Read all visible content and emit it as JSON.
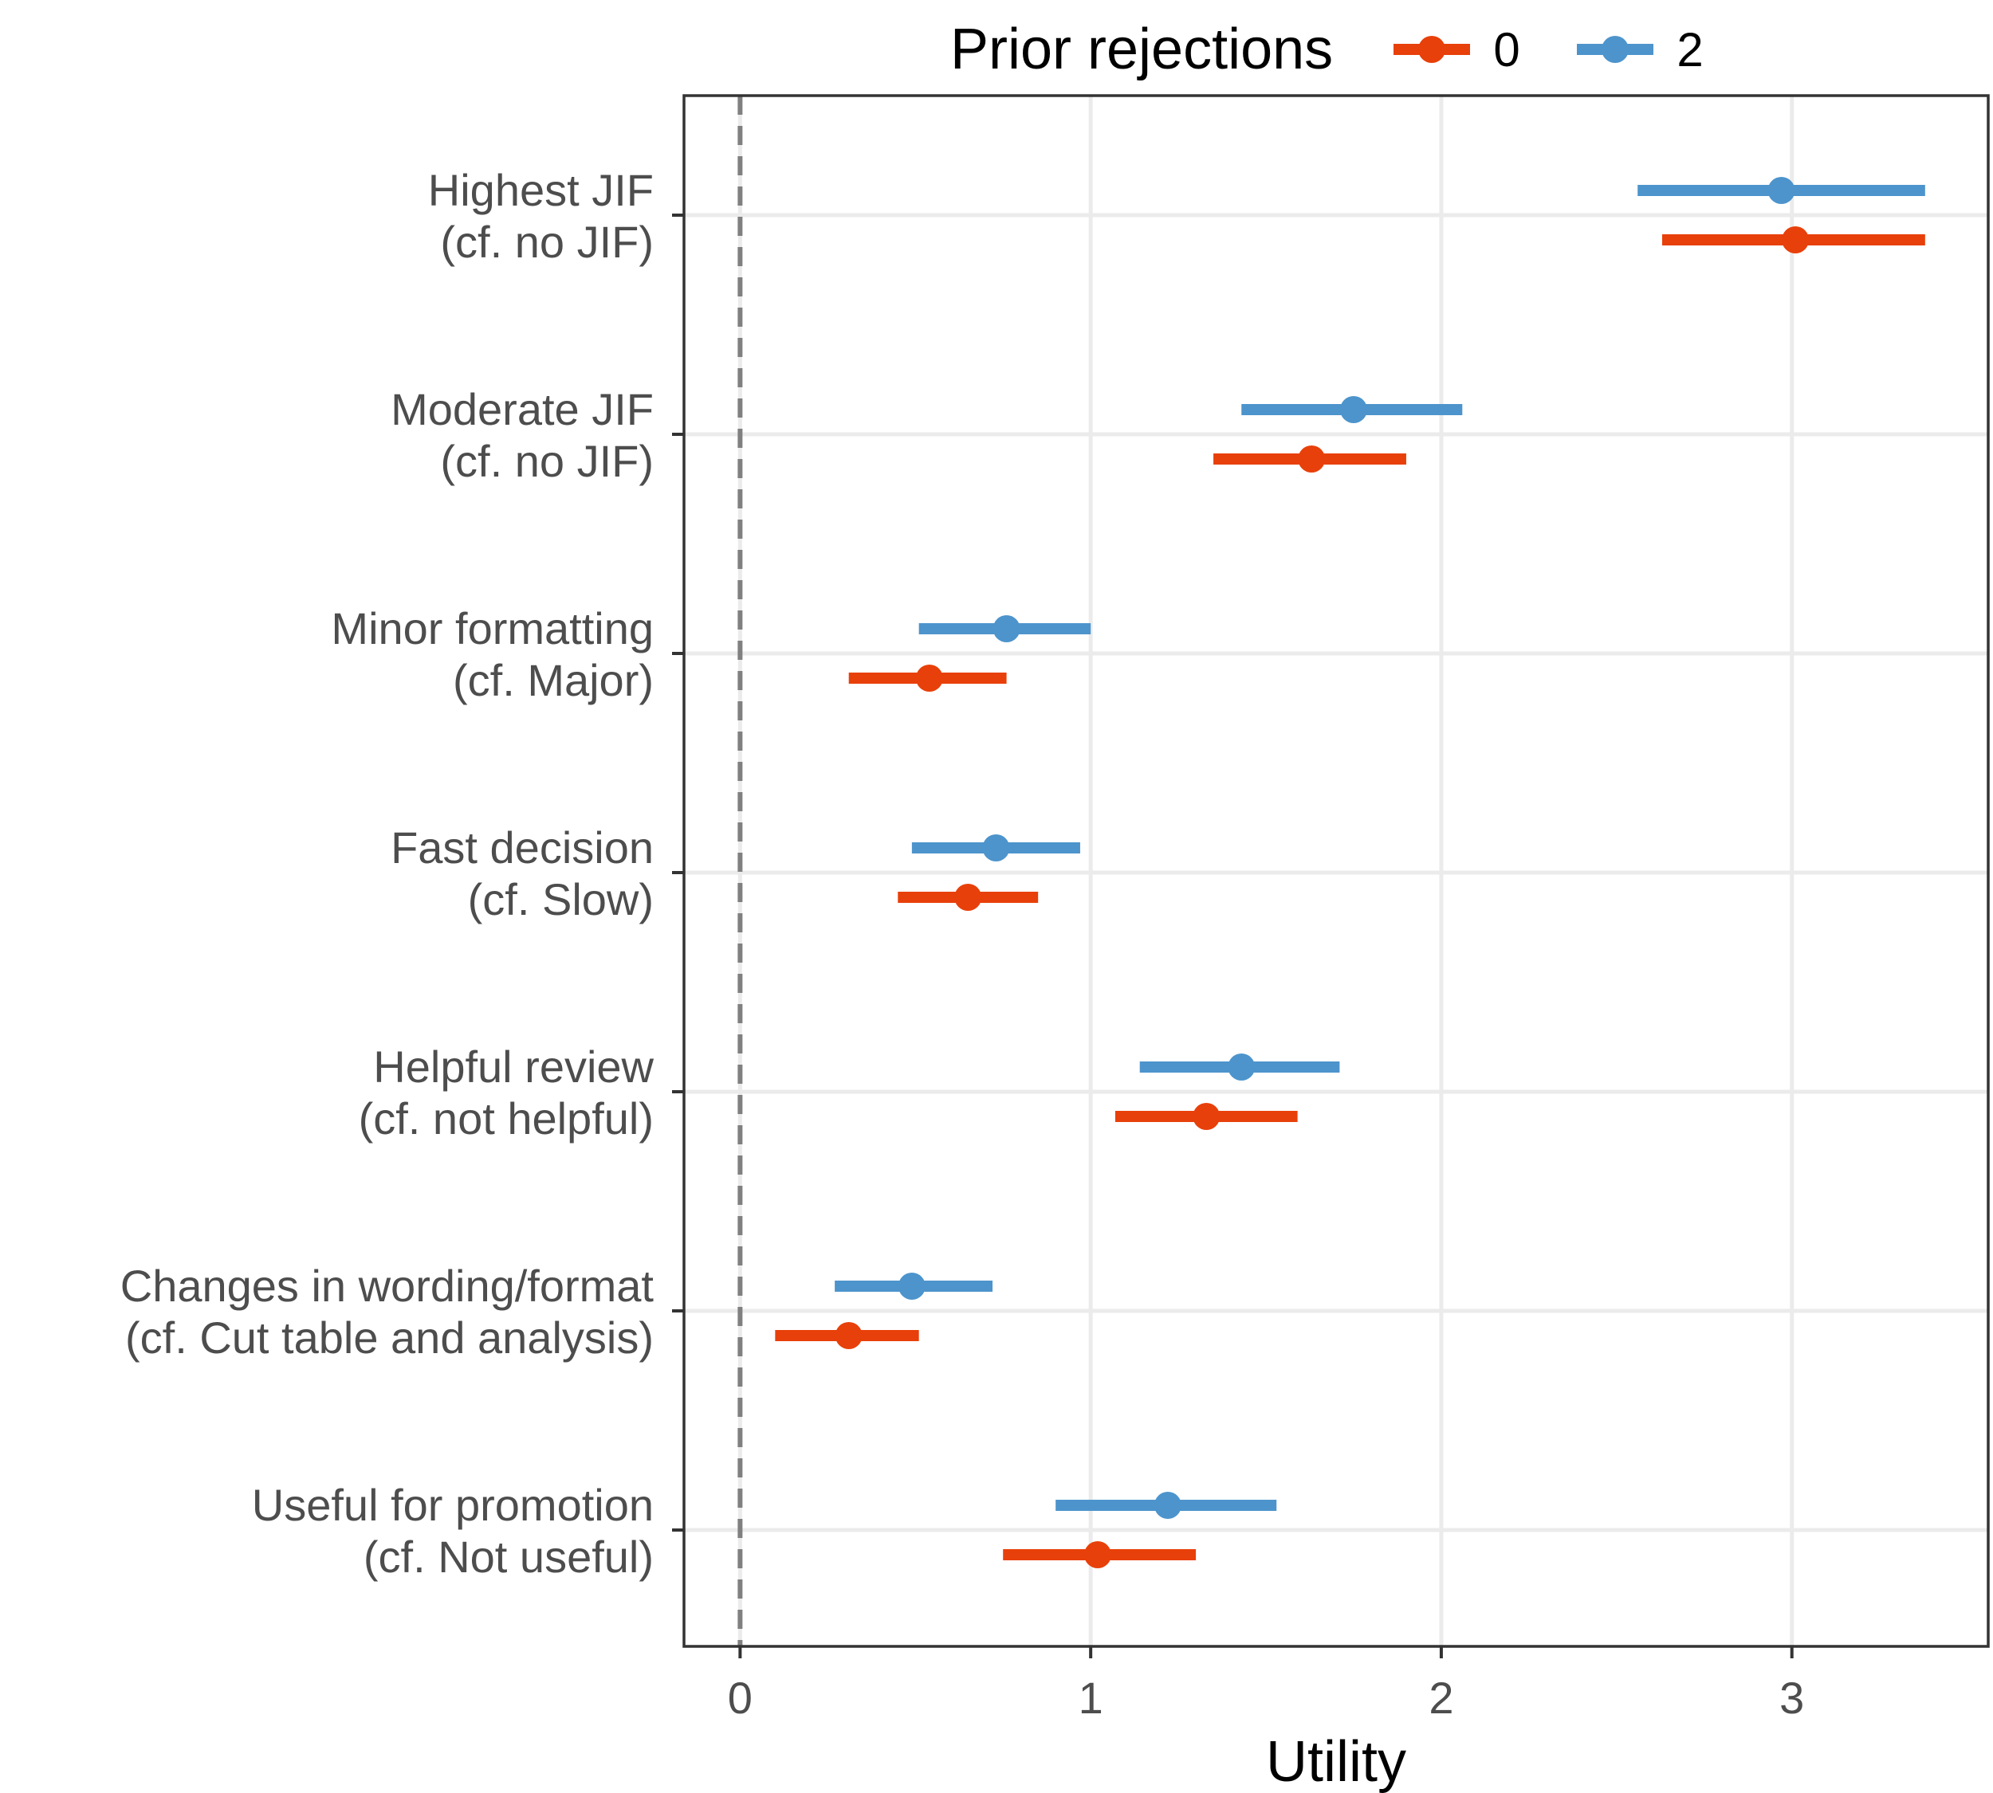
{
  "chart_data": {
    "type": "scatter",
    "subtype": "dot-and-whisker",
    "xlabel": "Utility",
    "ylabel": "",
    "xlim": [
      -0.16,
      3.56
    ],
    "xticks": [
      0,
      1,
      2,
      3
    ],
    "xtick_labels": [
      "0",
      "1",
      "2",
      "3"
    ],
    "reference_line": 0,
    "grid": true,
    "legend": {
      "title": "Prior rejections",
      "position": "top",
      "entries": [
        "0",
        "2"
      ]
    },
    "categories": [
      {
        "line1": "Highest JIF",
        "line2": "(cf. no JIF)"
      },
      {
        "line1": "Moderate JIF",
        "line2": "(cf. no JIF)"
      },
      {
        "line1": "Minor formatting",
        "line2": "(cf. Major)"
      },
      {
        "line1": "Fast decision",
        "line2": "(cf. Slow)"
      },
      {
        "line1": "Helpful review",
        "line2": "(cf. not helpful)"
      },
      {
        "line1": "Changes in wording/format",
        "line2": "(cf. Cut table and analysis)"
      },
      {
        "line1": "Useful for promotion",
        "line2": "(cf. Not useful)"
      }
    ],
    "series": [
      {
        "name": "0",
        "color": "#e8400a",
        "estimate": [
          3.01,
          1.63,
          0.54,
          0.65,
          1.33,
          0.31,
          1.02
        ],
        "lower": [
          2.63,
          1.35,
          0.31,
          0.45,
          1.07,
          0.1,
          0.75
        ],
        "upper": [
          3.38,
          1.9,
          0.76,
          0.85,
          1.59,
          0.51,
          1.3
        ]
      },
      {
        "name": "2",
        "color": "#4d94cc",
        "estimate": [
          2.97,
          1.75,
          0.76,
          0.73,
          1.43,
          0.49,
          1.22
        ],
        "lower": [
          2.56,
          1.43,
          0.51,
          0.49,
          1.14,
          0.27,
          0.9
        ],
        "upper": [
          3.38,
          2.06,
          1.0,
          0.97,
          1.71,
          0.72,
          1.53
        ]
      }
    ]
  }
}
